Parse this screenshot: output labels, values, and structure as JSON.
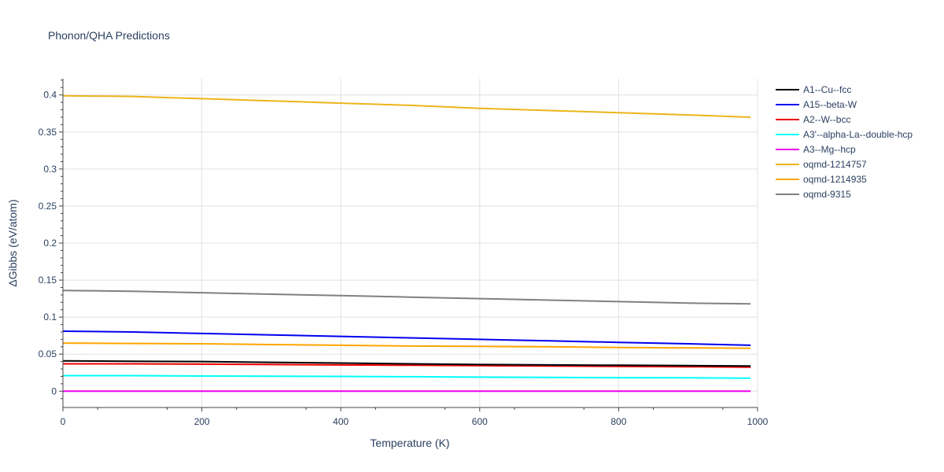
{
  "chart_data": {
    "type": "line",
    "title": "Phonon/QHA Predictions",
    "xlabel": "Temperature (K)",
    "ylabel": "ΔGibbs (eV/atom)",
    "xlim": [
      0,
      1000
    ],
    "ylim": [
      -0.022,
      0.422
    ],
    "x_ticks": [
      0,
      200,
      400,
      600,
      800,
      1000
    ],
    "y_ticks": [
      0,
      0.05,
      0.1,
      0.15,
      0.2,
      0.25,
      0.3,
      0.35,
      0.4
    ],
    "x_tick_labels": [
      "0",
      "200",
      "400",
      "600",
      "800",
      "1000"
    ],
    "y_tick_labels": [
      "0",
      "0.05",
      "0.1",
      "0.15",
      "0.2",
      "0.25",
      "0.3",
      "0.35",
      "0.4"
    ],
    "grid": true,
    "legend_position": "top-right",
    "x": [
      0,
      100,
      200,
      300,
      400,
      500,
      600,
      700,
      800,
      900,
      990
    ],
    "series": [
      {
        "name": "A1--Cu--fcc",
        "color": "#000000",
        "values": [
          0.041,
          0.0405,
          0.04,
          0.039,
          0.038,
          0.037,
          0.036,
          0.0355,
          0.035,
          0.0345,
          0.034
        ]
      },
      {
        "name": "A15--beta-W",
        "color": "#0000ee",
        "values": [
          0.081,
          0.08,
          0.078,
          0.076,
          0.074,
          0.072,
          0.07,
          0.068,
          0.066,
          0.064,
          0.062
        ]
      },
      {
        "name": "A2--W--bcc",
        "color": "#ee0000",
        "values": [
          0.037,
          0.037,
          0.0365,
          0.036,
          0.0355,
          0.035,
          0.0345,
          0.034,
          0.0335,
          0.033,
          0.0325
        ]
      },
      {
        "name": "A3'--alpha-La--double-hcp",
        "color": "#00ffff",
        "values": [
          0.021,
          0.021,
          0.0205,
          0.0202,
          0.02,
          0.0195,
          0.019,
          0.0187,
          0.0183,
          0.018,
          0.0175
        ]
      },
      {
        "name": "A3--Mg--hcp",
        "color": "#ee00ee",
        "values": [
          0,
          0,
          0,
          0,
          0,
          0,
          0,
          0,
          0,
          0,
          0
        ]
      },
      {
        "name": "oqmd-1214757",
        "color": "#ecb51c",
        "values": [
          0.399,
          0.398,
          0.395,
          0.392,
          0.389,
          0.386,
          0.382,
          0.379,
          0.376,
          0.373,
          0.37
        ]
      },
      {
        "name": "oqmd-1214935",
        "color": "#ffa500",
        "values": [
          0.065,
          0.0645,
          0.064,
          0.063,
          0.062,
          0.061,
          0.0605,
          0.06,
          0.059,
          0.0585,
          0.058
        ]
      },
      {
        "name": "oqmd-9315",
        "color": "#808080",
        "values": [
          0.136,
          0.135,
          0.133,
          0.131,
          0.129,
          0.127,
          0.125,
          0.123,
          0.121,
          0.119,
          0.118
        ]
      }
    ]
  }
}
